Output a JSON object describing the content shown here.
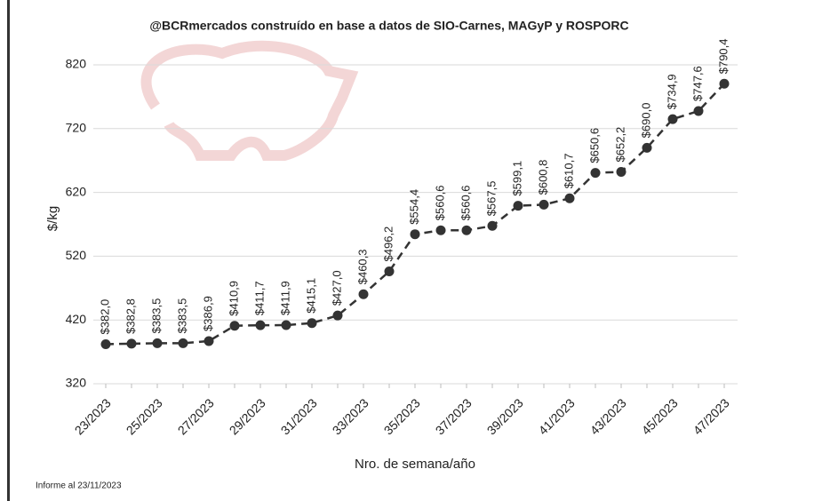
{
  "chart_data": {
    "type": "line",
    "title": "@BCRmercados construído  en base a datos de SIO-Carnes, MAGyP y ROSPORC",
    "y_label": "$/kg",
    "x_label": "Nro. de semana/año",
    "note": "Informe al 23/11/2023",
    "categories": [
      "23/2023",
      null,
      "25/2023",
      null,
      "27/2023",
      null,
      "29/2023",
      null,
      "31/2023",
      null,
      "33/2023",
      null,
      "35/2023",
      null,
      "37/2023",
      null,
      "39/2023",
      null,
      "41/2023",
      null,
      "43/2023",
      null,
      "45/2023",
      null,
      "47/2023"
    ],
    "series": [
      {
        "name": "$/kg",
        "color": "#333333",
        "values": [
          382.0,
          382.8,
          383.5,
          383.5,
          386.9,
          410.9,
          411.7,
          411.9,
          415.1,
          427.0,
          460.3,
          496.2,
          554.4,
          560.6,
          560.6,
          567.5,
          599.1,
          600.8,
          610.7,
          650.6,
          652.2,
          690.0,
          734.9,
          747.6,
          790.4
        ],
        "value_labels": [
          "$382,0",
          "$382,8",
          "$383,5",
          "$383,5",
          "$386,9",
          "$410,9",
          "$411,7",
          "$411,9",
          "$415,1",
          "$427,0",
          "$460,3",
          "$496,2",
          "$554,4",
          "$560,6",
          "$560,6",
          "$567,5",
          "$599,1",
          "$600,8",
          "$610,7",
          "$650,6",
          "$652,2",
          "$690,0",
          "$734,9",
          "$747,6",
          "$790,4"
        ]
      }
    ],
    "ylim": [
      320,
      820
    ],
    "yticks": [
      320,
      420,
      520,
      620,
      720,
      820
    ],
    "grid": true
  }
}
